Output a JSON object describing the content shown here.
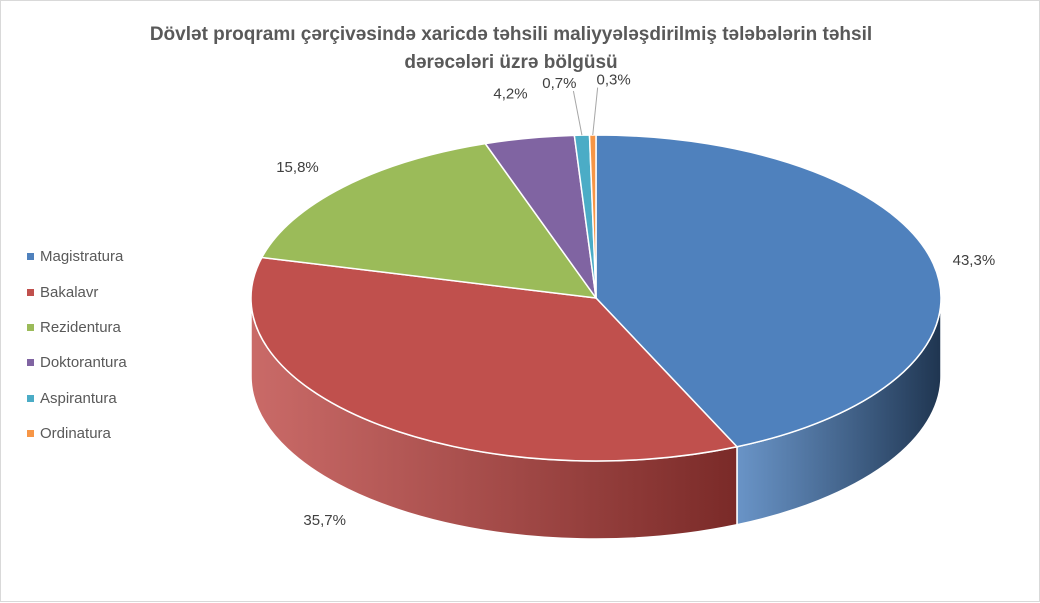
{
  "chart_data": {
    "type": "pie",
    "title": "Dövlət proqramı çərçivəsində xaricdə təhsili maliyyələşdirilmiş tələbələrin təhsil dərəcələri üzrə bölgüsü",
    "title_lines": [
      "Dövlət proqramı  çərçivəsində xaricdə təhsili maliyyələşdirilmiş tələbələrin təhsil",
      "dərəcələri üzrə bölgüsü"
    ],
    "categories": [
      "Magistratura",
      "Bakalavr",
      "Rezidentura",
      "Doktorantura",
      "Aspirantura",
      "Ordinatura"
    ],
    "values": [
      43.3,
      35.7,
      15.8,
      4.2,
      0.7,
      0.3
    ],
    "data_labels": [
      "43,3%",
      "35,7%",
      "15,8%",
      "4,2%",
      "0,7%",
      "0,3%"
    ],
    "colors": [
      "#4f81bd",
      "#c0504d",
      "#9bbb59",
      "#8064a2",
      "#4bacc6",
      "#f79646"
    ],
    "side_colors": [
      "#1f3550",
      "#7a2a28",
      "#5e7a33",
      "#4e3a68",
      "#2e7a8f",
      "#b8651f"
    ],
    "legend_position": "left",
    "style": "3d"
  }
}
